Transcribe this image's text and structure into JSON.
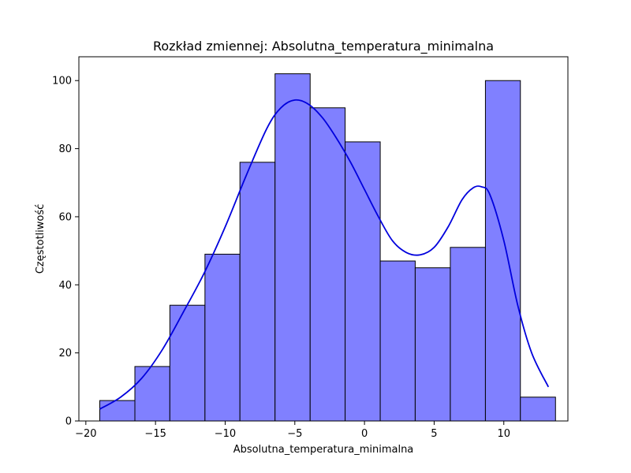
{
  "chart_data": {
    "type": "bar",
    "title": "Rozkład zmiennej: Absolutna_temperatura_minimalna",
    "xlabel": "Absolutna_temperatura_minimalna",
    "ylabel": "Częstotliwość",
    "xlim": [
      -20.5,
      14.6
    ],
    "ylim": [
      0,
      107
    ],
    "xticks": [
      -20,
      -15,
      -10,
      -5,
      0,
      5,
      10
    ],
    "xtick_labels": [
      "−20",
      "−15",
      "−10",
      "−5",
      "0",
      "5",
      "10"
    ],
    "yticks": [
      0,
      20,
      40,
      60,
      80,
      100
    ],
    "ytick_labels": [
      "0",
      "20",
      "40",
      "60",
      "80",
      "100"
    ],
    "bins": [
      -19.0,
      -16.48,
      -13.97,
      -11.45,
      -8.94,
      -6.42,
      -3.9,
      -1.39,
      1.13,
      3.64,
      6.16,
      8.68,
      11.19,
      13.71
    ],
    "counts": [
      6,
      16,
      34,
      49,
      76,
      102,
      92,
      82,
      47,
      45,
      51,
      100,
      7
    ],
    "bar_color": "#8080ff",
    "kde": {
      "color": "#0000dd",
      "x": [
        -19.0,
        -17.5,
        -16.0,
        -14.5,
        -13.0,
        -11.5,
        -10.0,
        -8.5,
        -7.0,
        -6.0,
        -5.0,
        -4.0,
        -3.0,
        -2.0,
        -1.0,
        0.0,
        1.0,
        2.0,
        3.0,
        4.0,
        5.0,
        6.0,
        7.0,
        7.8,
        8.4,
        9.0,
        10.0,
        11.0,
        12.0,
        13.2
      ],
      "y": [
        3.5,
        7.0,
        12.5,
        21.0,
        32.0,
        43.5,
        57.0,
        72.0,
        86.0,
        92.0,
        94.3,
        93.0,
        89.0,
        83.0,
        76.0,
        68.0,
        60.0,
        53.0,
        49.5,
        48.8,
        51.0,
        57.0,
        65.0,
        68.5,
        68.8,
        66.5,
        53.0,
        34.0,
        20.0,
        10.0
      ]
    }
  }
}
